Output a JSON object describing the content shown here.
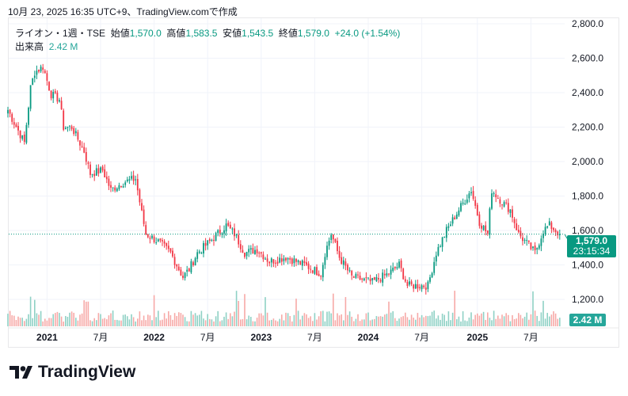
{
  "caption": "10月 23, 2025 16:35 UTC+9、TradingView.comで作成",
  "legend": {
    "symbol": "ライオン・1週・TSE",
    "open_label": "始値",
    "open": "1,570.0",
    "high_label": "高値",
    "high": "1,583.5",
    "low_label": "安値",
    "low": "1,543.5",
    "close_label": "終値",
    "close": "1,579.0",
    "change": "+24.0 (+1.54%)",
    "volume_label": "出来高",
    "volume": "2.42 M"
  },
  "price_badge": {
    "price": "1,579.0",
    "countdown": "23:15:34"
  },
  "volume_badge": "2.42 M",
  "logo_text": "TradingView",
  "colors": {
    "up": "#089981",
    "down": "#f23645",
    "vol_up": "#8fd1c5",
    "vol_down": "#f7a9a7",
    "badge": "#089981"
  },
  "chart_data": {
    "type": "candlestick",
    "interval": "1 week",
    "ylim": [
      1100,
      2800
    ],
    "y_ticks": [
      "1,200.0",
      "1,400.0",
      "1,600.0",
      "1,800.0",
      "2,000.0",
      "2,200.0",
      "2,400.0",
      "2,600.0",
      "2,800.0"
    ],
    "y_tick_values": [
      1200,
      1400,
      1600,
      1800,
      2000,
      2200,
      2400,
      2600,
      2800
    ],
    "x_ticks": [
      {
        "label": "2021",
        "week": 19
      },
      {
        "label": "7月",
        "week": 45
      },
      {
        "label": "2022",
        "week": 71
      },
      {
        "label": "7月",
        "week": 97
      },
      {
        "label": "2023",
        "week": 123
      },
      {
        "label": "7月",
        "week": 149
      },
      {
        "label": "2024",
        "week": 175
      },
      {
        "label": "7月",
        "week": 201
      },
      {
        "label": "2025",
        "week": 228
      },
      {
        "label": "7月",
        "week": 254
      }
    ],
    "total_weeks": 268,
    "close_keypoints": [
      [
        0,
        2300
      ],
      [
        2,
        2250
      ],
      [
        8,
        2110
      ],
      [
        11,
        2430
      ],
      [
        13,
        2520
      ],
      [
        17,
        2550
      ],
      [
        21,
        2390
      ],
      [
        25,
        2360
      ],
      [
        27,
        2200
      ],
      [
        31,
        2200
      ],
      [
        37,
        2060
      ],
      [
        40,
        1930
      ],
      [
        46,
        1950
      ],
      [
        50,
        1835
      ],
      [
        56,
        1880
      ],
      [
        62,
        1900
      ],
      [
        65,
        1700
      ],
      [
        67,
        1580
      ],
      [
        73,
        1535
      ],
      [
        79,
        1470
      ],
      [
        85,
        1330
      ],
      [
        88,
        1375
      ],
      [
        92,
        1470
      ],
      [
        98,
        1535
      ],
      [
        106,
        1630
      ],
      [
        110,
        1580
      ],
      [
        115,
        1470
      ],
      [
        121,
        1490
      ],
      [
        127,
        1420
      ],
      [
        135,
        1445
      ],
      [
        144,
        1400
      ],
      [
        152,
        1350
      ],
      [
        154,
        1470
      ],
      [
        157,
        1580
      ],
      [
        161,
        1445
      ],
      [
        167,
        1330
      ],
      [
        177,
        1300
      ],
      [
        185,
        1350
      ],
      [
        190,
        1400
      ],
      [
        194,
        1280
      ],
      [
        204,
        1280
      ],
      [
        208,
        1470
      ],
      [
        213,
        1600
      ],
      [
        219,
        1720
      ],
      [
        225,
        1835
      ],
      [
        229,
        1650
      ],
      [
        233,
        1580
      ],
      [
        235,
        1835
      ],
      [
        240,
        1765
      ],
      [
        244,
        1720
      ],
      [
        248,
        1580
      ],
      [
        256,
        1470
      ],
      [
        260,
        1600
      ],
      [
        263,
        1630
      ],
      [
        268,
        1579
      ]
    ],
    "last_close": 1579.0
  }
}
